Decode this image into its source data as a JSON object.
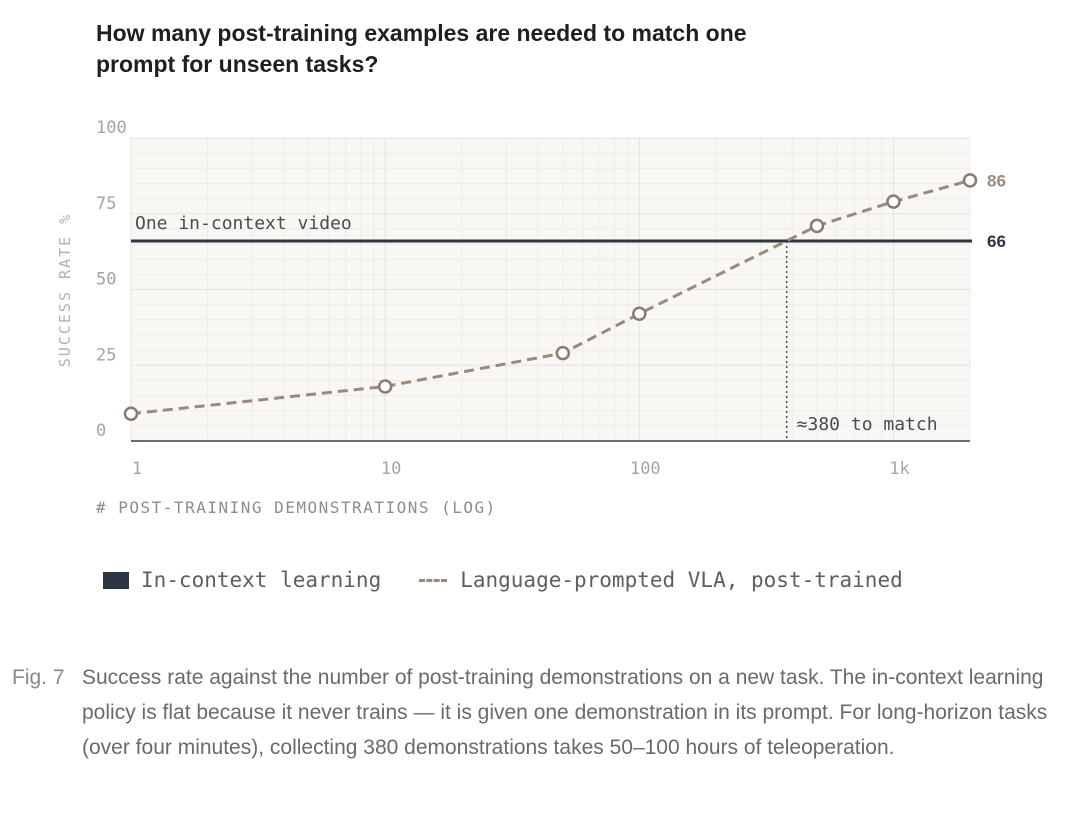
{
  "colors": {
    "icl": "#2c3542",
    "vla": "#9a8a7c",
    "grid": "#e6e3dd",
    "plot_bg": "#f8f7f4",
    "axis_text": "#a6a49f"
  },
  "chart_data": {
    "type": "line",
    "title": "How many post-training examples are needed to match one prompt for unseen tasks?",
    "xlabel": "# POST-TRAINING DEMONSTRATIONS (LOG)",
    "ylabel": "SUCCESS RATE %",
    "x_scale": "log",
    "xlim": [
      1,
      2000
    ],
    "ylim": [
      0,
      100
    ],
    "x_ticks": [
      {
        "value": 1,
        "label": "1"
      },
      {
        "value": 10,
        "label": "10"
      },
      {
        "value": 100,
        "label": "100"
      },
      {
        "value": 1000,
        "label": "1k"
      }
    ],
    "y_ticks": [
      {
        "value": 0,
        "label": "0"
      },
      {
        "value": 25,
        "label": "25"
      },
      {
        "value": 50,
        "label": "50"
      },
      {
        "value": 75,
        "label": "75"
      },
      {
        "value": 100,
        "label": "100"
      }
    ],
    "grid": true,
    "legend_position": "bottom",
    "series": [
      {
        "name": "In-context learning",
        "style": "solid",
        "x": [
          1,
          2000
        ],
        "y": [
          66,
          66
        ],
        "end_label": "66",
        "annotation": "One in-context video"
      },
      {
        "name": "Language-prompted VLA, post-trained",
        "style": "dashed",
        "x": [
          1,
          10,
          50,
          100,
          500,
          1000,
          2000
        ],
        "y": [
          9,
          18,
          29,
          42,
          71,
          79,
          86
        ],
        "end_label": "86"
      }
    ],
    "crossover": {
      "x": 380,
      "y": 66,
      "label": "≈380 to match"
    }
  },
  "caption": {
    "label": "Fig. 7",
    "text": "Success rate against the number of post-training demonstrations on a new task. The in-context learning policy is flat because it never trains — it is given one demonstration in its prompt. For long-horizon tasks (over four minutes), collecting 380 demonstrations takes 50–100 hours of teleoperation."
  }
}
